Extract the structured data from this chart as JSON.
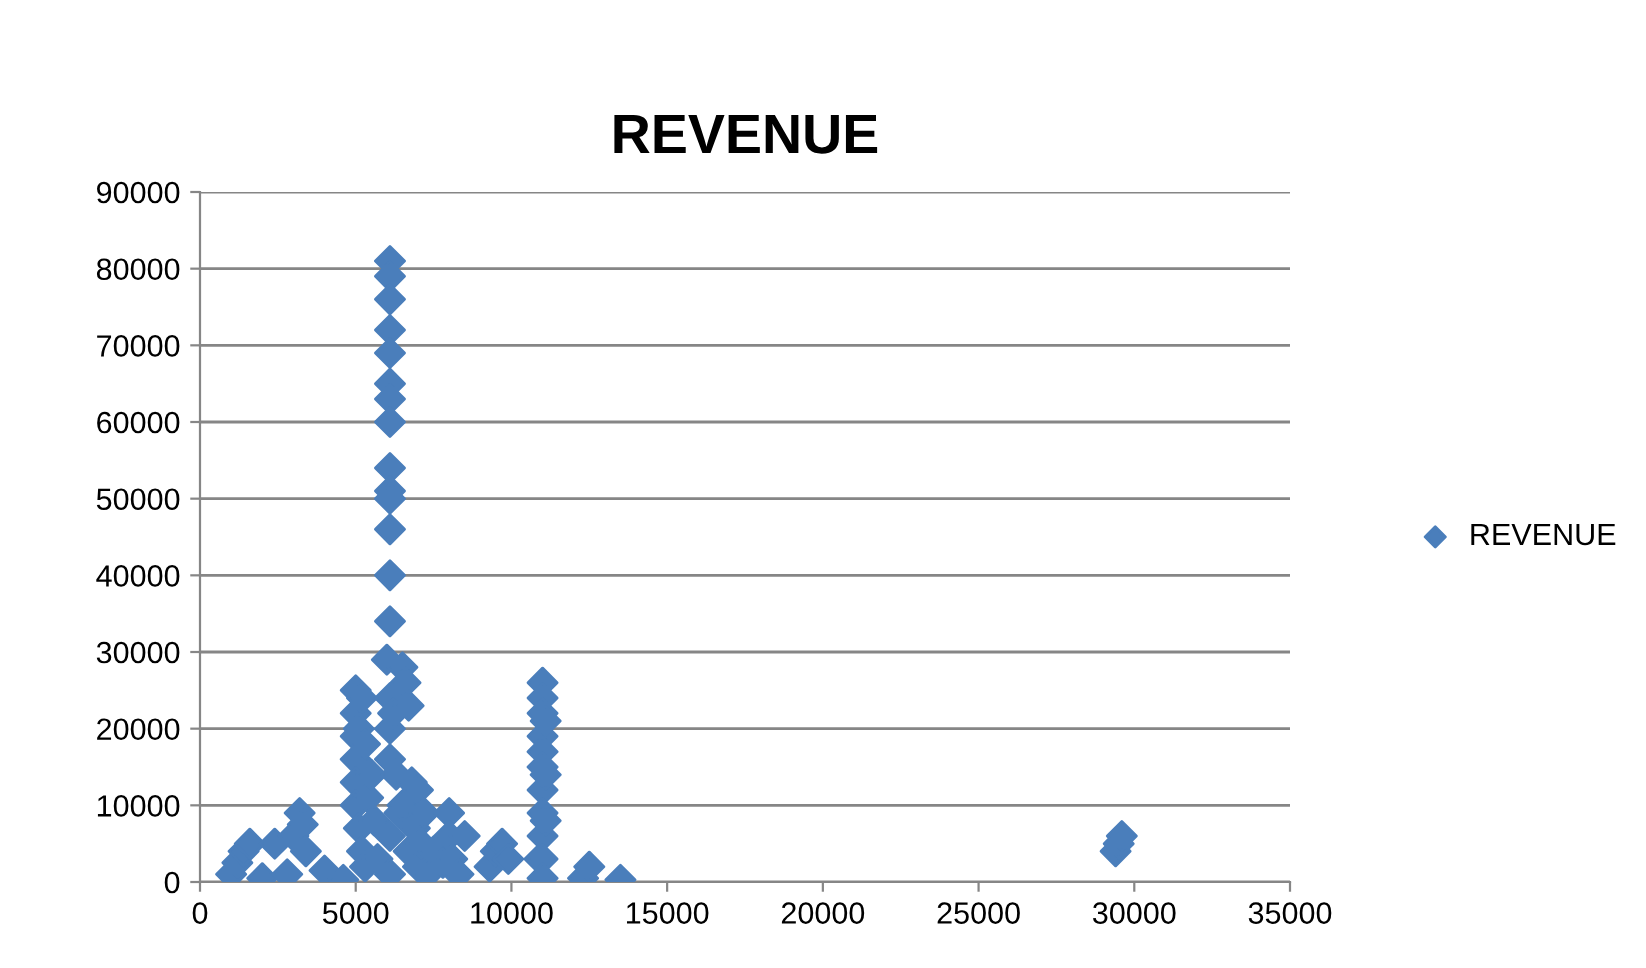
{
  "chart_data": {
    "type": "scatter",
    "title": "REVENUE",
    "series": [
      {
        "name": "REVENUE",
        "color": "#4a7ebb",
        "x": [
          1000,
          1200,
          1400,
          1600,
          2000,
          2400,
          2800,
          3000,
          3200,
          3300,
          3400,
          4000,
          4600,
          5000,
          5000,
          5000,
          5000,
          5000,
          5000,
          5100,
          5100,
          5200,
          5200,
          5300,
          5300,
          5400,
          5500,
          5600,
          5700,
          6000,
          6100,
          6100,
          6100,
          6100,
          6100,
          6100,
          6100,
          6100,
          6100,
          6100,
          6100,
          6100,
          6100,
          6100,
          6100,
          6100,
          6100,
          6100,
          6100,
          6200,
          6300,
          6400,
          6500,
          6500,
          6600,
          6700,
          6700,
          6800,
          6900,
          7000,
          7000,
          7100,
          7200,
          7300,
          7500,
          7800,
          8000,
          8000,
          8100,
          8300,
          8500,
          9300,
          9500,
          9700,
          9900,
          10900,
          11000,
          11000,
          11000,
          11000,
          11000,
          11000,
          11000,
          11000,
          11000,
          11000,
          11000,
          11100,
          11100,
          11100,
          12300,
          12500,
          13500,
          29400,
          29500,
          29600
        ],
        "values": [
          1000,
          2500,
          4000,
          5000,
          500,
          5000,
          1000,
          6000,
          9000,
          7500,
          4000,
          1500,
          300,
          25000,
          22000,
          19000,
          16000,
          13000,
          10000,
          20000,
          7000,
          24000,
          4000,
          18000,
          2000,
          11000,
          14000,
          8000,
          3000,
          29000,
          81000,
          79000,
          76000,
          72000,
          69000,
          65000,
          63000,
          60000,
          54000,
          51000,
          50000,
          46000,
          40000,
          34000,
          24000,
          20000,
          16000,
          6000,
          1000,
          22000,
          14000,
          9000,
          28000,
          10000,
          26000,
          23000,
          4000,
          13000,
          7000,
          12000,
          2000,
          5000,
          9000,
          1000,
          4000,
          2500,
          9000,
          6000,
          3000,
          1000,
          6000,
          2000,
          4000,
          5000,
          3000,
          3000,
          26000,
          24000,
          22000,
          19000,
          17000,
          15000,
          12000,
          9000,
          6000,
          3000,
          500,
          21000,
          14000,
          8000,
          500,
          2000,
          300,
          4000,
          5000,
          6000
        ]
      }
    ],
    "marker": "diamond",
    "xlim": [
      0,
      35000
    ],
    "xticks": [
      0,
      5000,
      10000,
      15000,
      20000,
      25000,
      30000,
      35000
    ],
    "ylim": [
      0,
      90000
    ],
    "yticks": [
      0,
      10000,
      20000,
      30000,
      40000,
      50000,
      60000,
      70000,
      80000,
      90000
    ],
    "grid": "y",
    "legend": "right"
  }
}
